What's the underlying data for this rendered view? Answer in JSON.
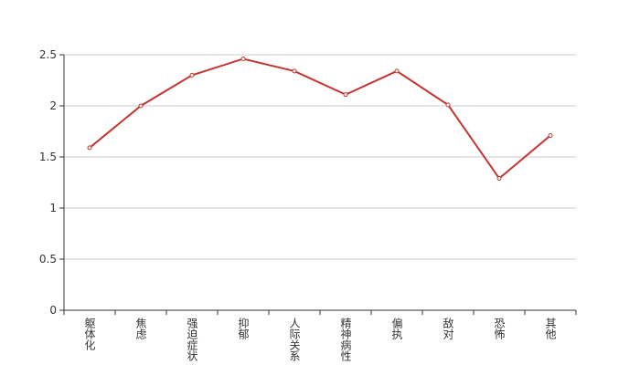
{
  "chart_data": {
    "type": "line",
    "categories": [
      "躯体化",
      "焦虑",
      "强迫症状",
      "抑郁",
      "人际关系",
      "精神病性",
      "偏执",
      "敌对",
      "恐怖",
      "其他"
    ],
    "series": [
      {
        "name": "",
        "color": "#c23531",
        "values": [
          1.59,
          2.0,
          2.3,
          2.46,
          2.34,
          2.11,
          2.34,
          2.01,
          1.29,
          1.71
        ]
      }
    ],
    "ylim": [
      0,
      2.5
    ],
    "yticks": [
      0,
      0.5,
      1,
      1.5,
      2,
      2.5
    ],
    "grid": true
  }
}
